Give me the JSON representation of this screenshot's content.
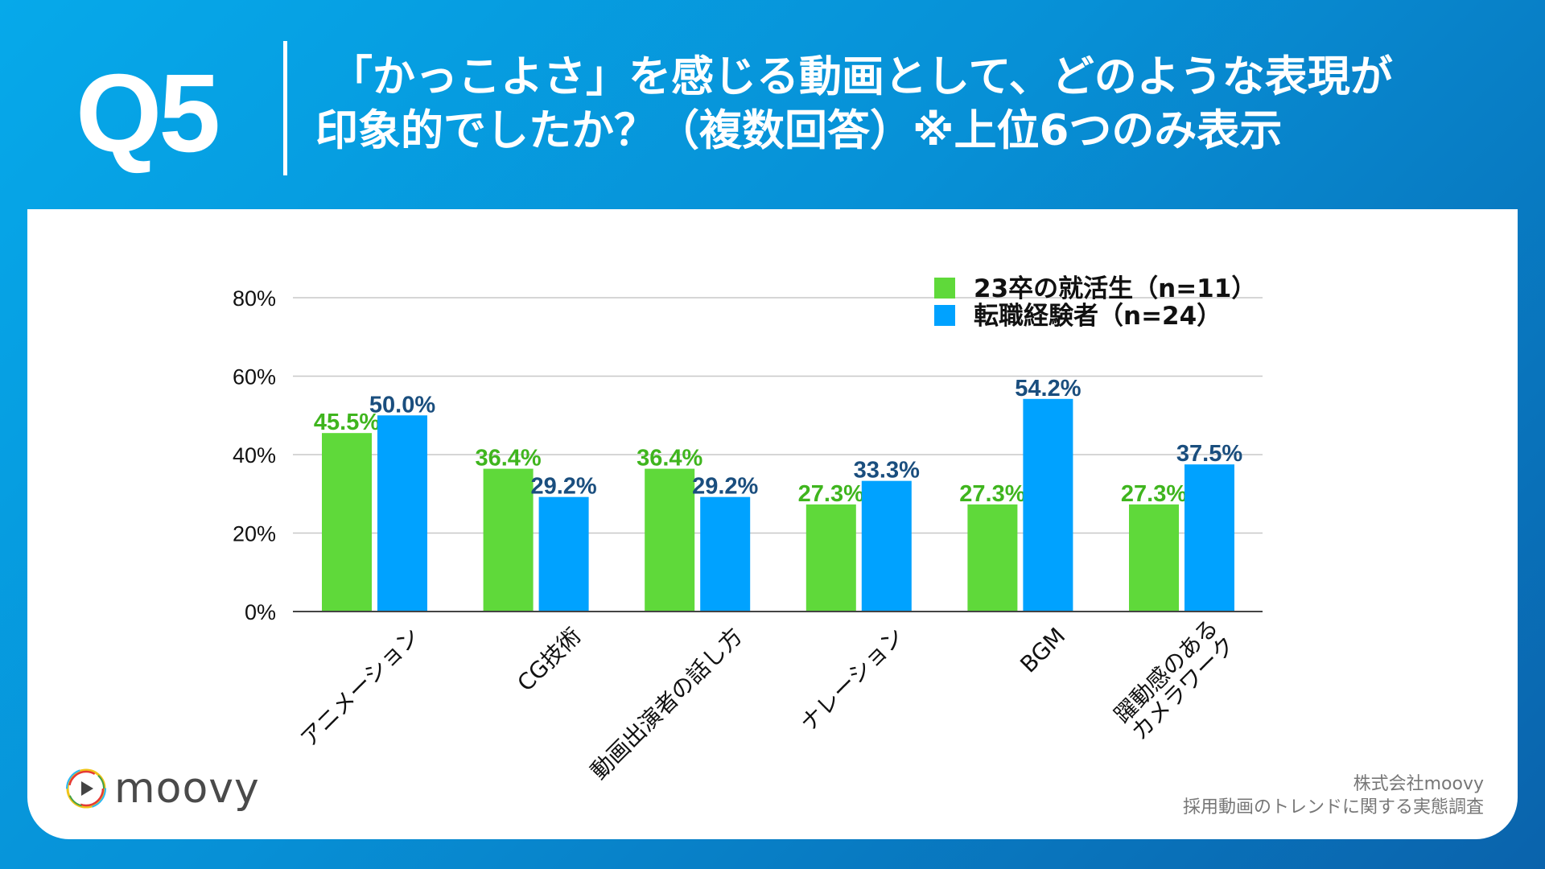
{
  "header": {
    "question_number": "Q5",
    "title_line1": "「かっこよさ」を感じる動画として、どのような表現が",
    "title_line2": "印象的でしたか？（複数回答）※上位6つのみ表示"
  },
  "chart_data": {
    "type": "bar",
    "categories": [
      [
        "アニメーション"
      ],
      [
        "CG技術"
      ],
      [
        "動画出演者の話し方"
      ],
      [
        "ナレーション"
      ],
      [
        "BGM"
      ],
      [
        "躍動感のある",
        "カメラワーク"
      ]
    ],
    "series": [
      {
        "name": "23卒の就活生（n=11）",
        "color": "#5fd93a",
        "label_color": "#3fb51e",
        "values": [
          45.5,
          36.4,
          36.4,
          27.3,
          27.3,
          27.3
        ]
      },
      {
        "name": "転職経験者（n=24）",
        "color": "#00a2ff",
        "label_color": "#1a4e7e",
        "values": [
          50.0,
          29.2,
          29.2,
          33.3,
          54.2,
          37.5
        ]
      }
    ],
    "y_ticks": [
      "0%",
      "20%",
      "40%",
      "60%",
      "80%"
    ],
    "ylim": [
      0,
      80
    ],
    "grid": true,
    "legend_position": "top-right",
    "value_suffix": "%"
  },
  "footer": {
    "logo_text": "moovy",
    "credit_line1": "株式会社moovy",
    "credit_line2": "採用動画のトレンドに関する実態調査"
  },
  "colors": {
    "background": "#0790d6",
    "card": "#ffffff"
  }
}
